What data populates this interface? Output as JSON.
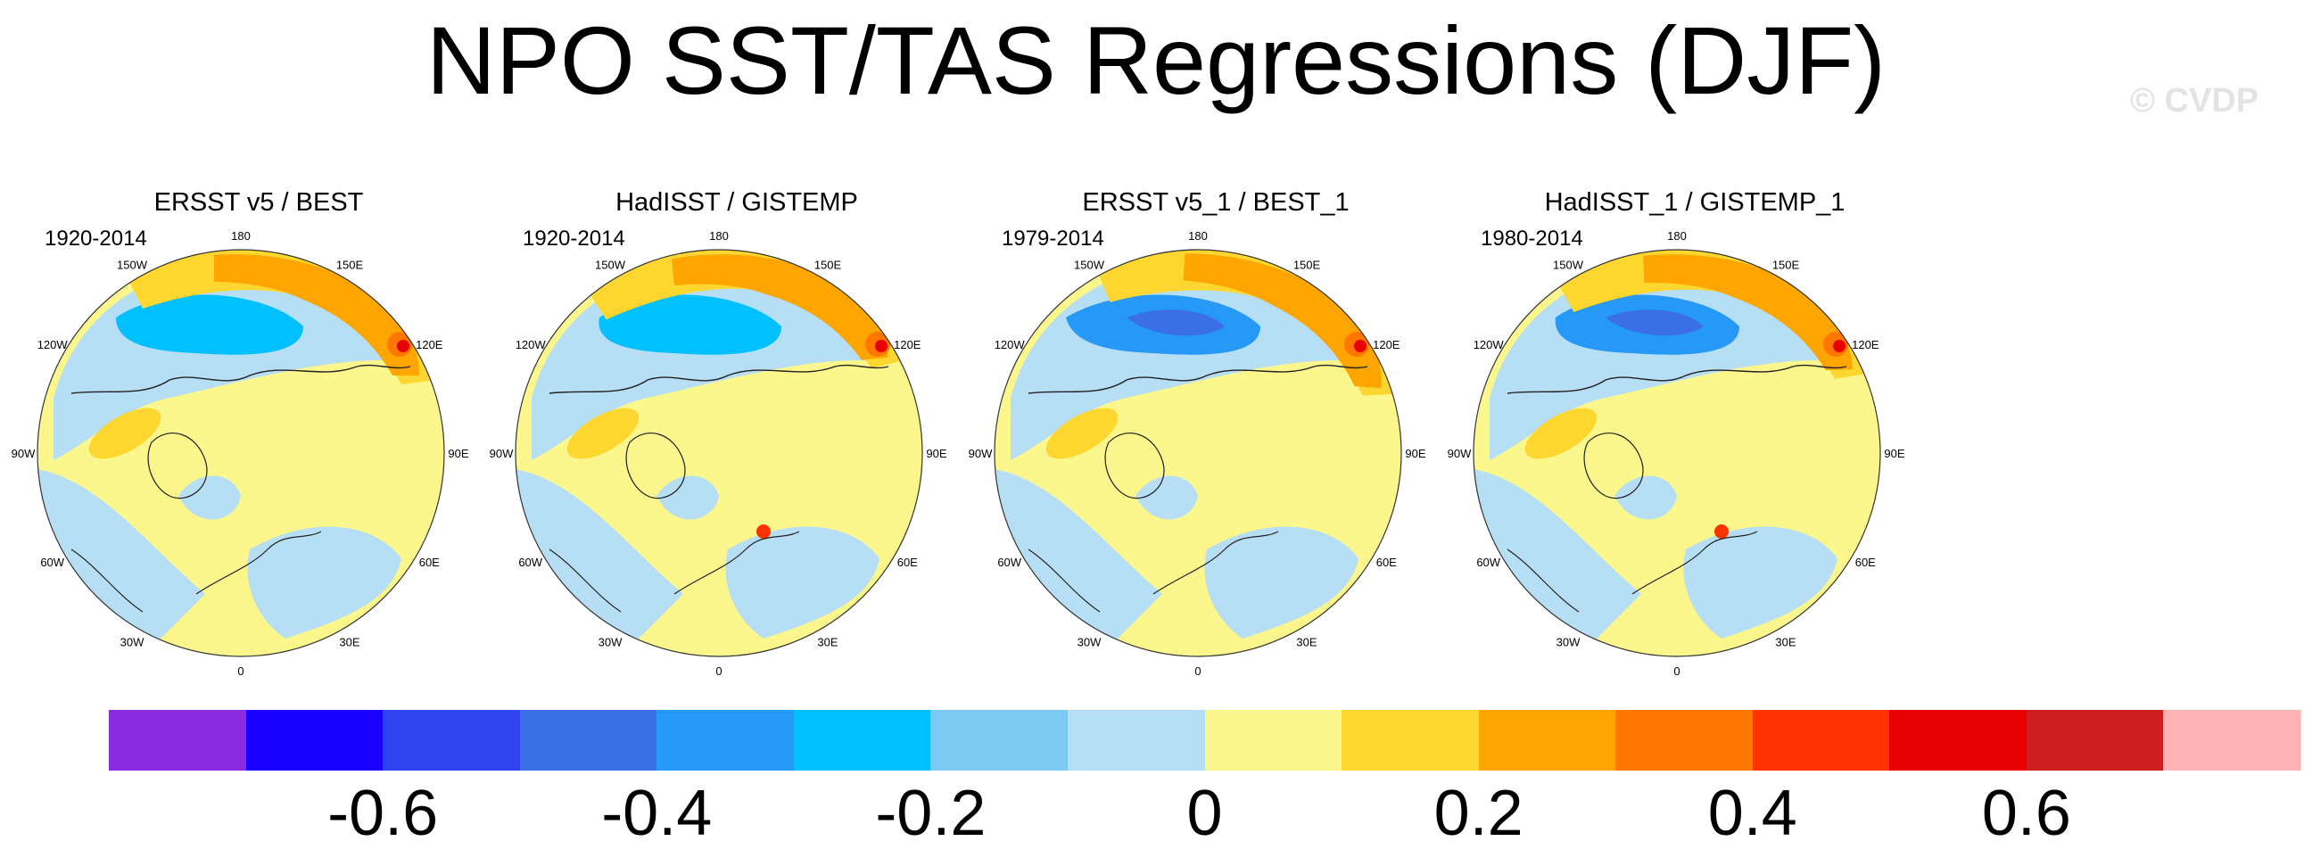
{
  "title": "NPO SST/TAS Regressions (DJF)",
  "watermark": "© CVDP",
  "panels": [
    {
      "title": "ERSST v5 / BEST",
      "years": "1920-2014"
    },
    {
      "title": "HadISST / GISTEMP",
      "years": "1920-2014"
    },
    {
      "title": "ERSST v5_1 / BEST_1",
      "years": "1979-2014"
    },
    {
      "title": "HadISST_1 / GISTEMP_1",
      "years": "1980-2014"
    }
  ],
  "longitude_labels": [
    "180",
    "150E",
    "120E",
    "90E",
    "60E",
    "30E",
    "0",
    "30W",
    "60W",
    "90W",
    "120W",
    "150W"
  ],
  "colorbar": {
    "colors": [
      "#8a2be2",
      "#1a00ff",
      "#2e44ee",
      "#3a6fe8",
      "#2599f5",
      "#00c0ff",
      "#7ccaf4",
      "#b6def4",
      "#fbf78d",
      "#fdd630",
      "#fea500",
      "#ff7700",
      "#ff3300",
      "#e60000",
      "#cc1e1e",
      "#ffb3b3"
    ],
    "tick_labels": [
      "-0.6",
      "-0.4",
      "-0.2",
      "0",
      "0.2",
      "0.4",
      "0.6"
    ],
    "tick_values": [
      -0.6,
      -0.4,
      -0.2,
      0,
      0.2,
      0.4,
      0.6
    ],
    "range": [
      -0.8,
      0.8
    ]
  }
}
